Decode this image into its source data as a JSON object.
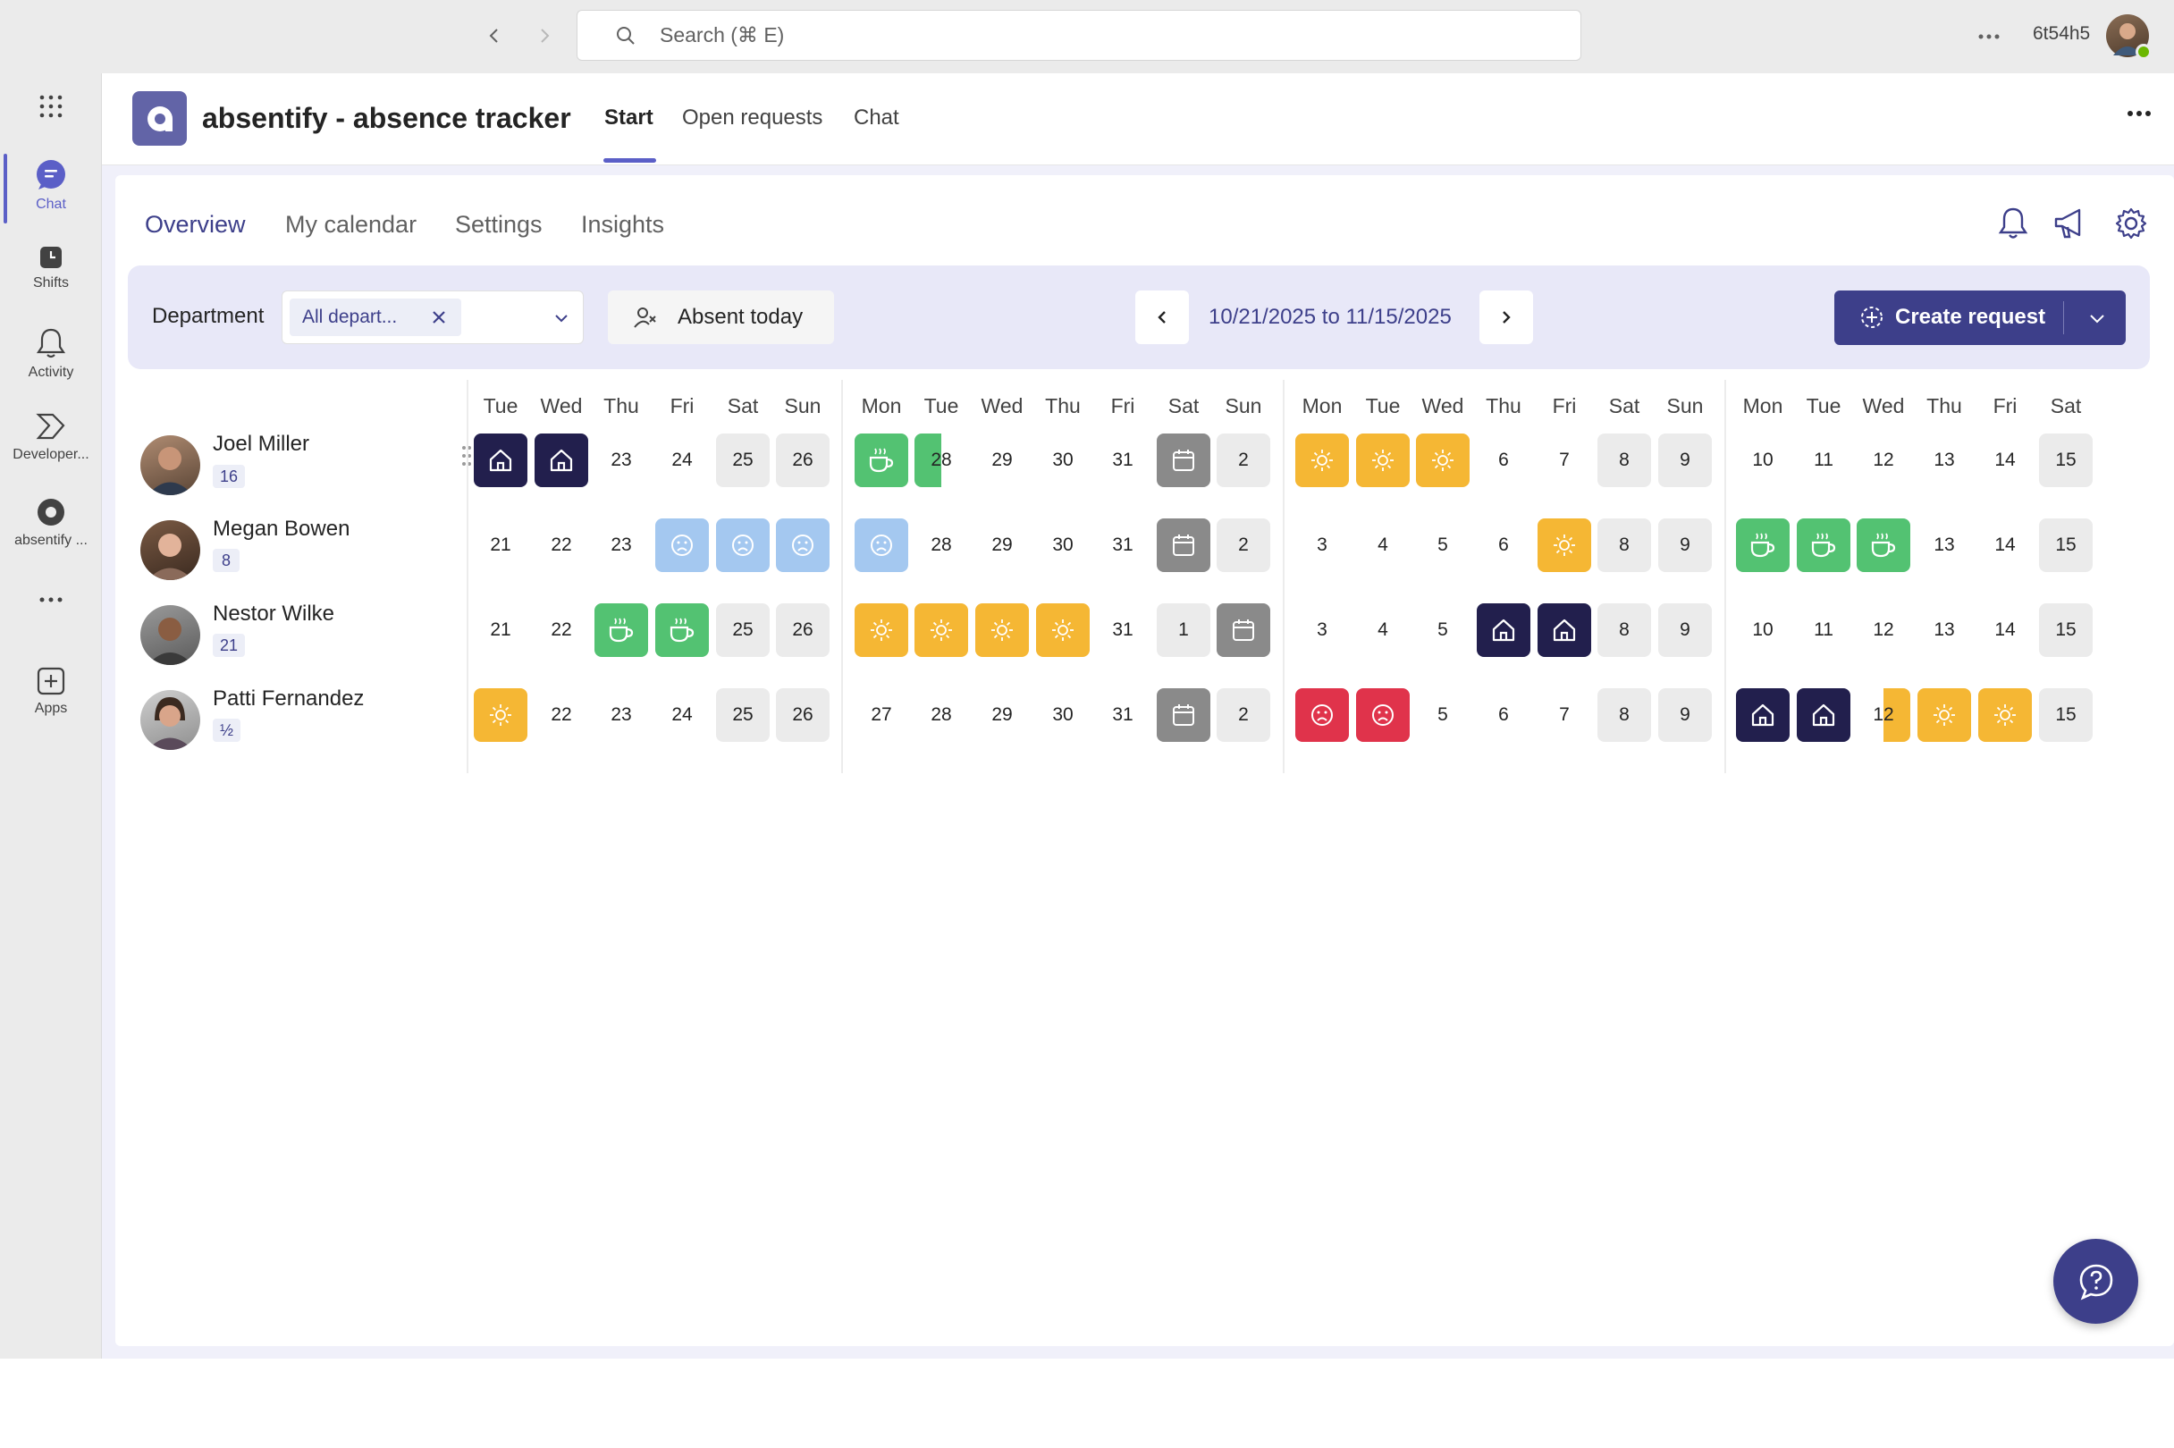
{
  "topbar": {
    "search_placeholder": "Search (⌘ E)",
    "username": "6t54h5"
  },
  "rail": {
    "items": [
      {
        "label": "Chat",
        "icon": "chat-icon",
        "active": true
      },
      {
        "label": "Shifts",
        "icon": "shifts-icon"
      },
      {
        "label": "Activity",
        "icon": "bell-icon"
      },
      {
        "label": "Developer...",
        "icon": "developer-icon"
      },
      {
        "label": "absentify ...",
        "icon": "absentify-icon"
      },
      {
        "label": "Apps",
        "icon": "apps-icon"
      }
    ]
  },
  "app": {
    "title": "absentify - absence tracker",
    "tabs": [
      "Start",
      "Open requests",
      "Chat"
    ],
    "active_tab": "Start"
  },
  "subnav": {
    "tabs": [
      "Overview",
      "My calendar",
      "Settings",
      "Insights"
    ],
    "active": "Overview"
  },
  "filters": {
    "department_label": "Department",
    "department_chip": "All depart...",
    "absent_today_label": "Absent today",
    "date_range": "10/21/2025 to 11/15/2025",
    "create_request_label": "Create request"
  },
  "colors": {
    "accent": "#3d3f8a",
    "home_office": "#221f4d",
    "vacation": "#f5b734",
    "break": "#53c272",
    "sick": "#a4c8f0",
    "sad_red": "#e0334b",
    "holiday_gray": "#8a8a8a",
    "weekend": "#ebebeb"
  },
  "calendar": {
    "day_headers": [
      "Tue",
      "Wed",
      "Thu",
      "Fri",
      "Sat",
      "Sun",
      "Mon",
      "Tue",
      "Wed",
      "Thu",
      "Fri",
      "Sat",
      "Sun",
      "Mon",
      "Tue",
      "Wed",
      "Thu",
      "Fri",
      "Sat",
      "Sun",
      "Mon",
      "Tue",
      "Wed",
      "Thu",
      "Fri",
      "Sat"
    ],
    "people": [
      {
        "name": "Joel Miller",
        "badge": "16",
        "cells": [
          {
            "t": "home"
          },
          {
            "t": "home"
          },
          {
            "d": "23"
          },
          {
            "d": "24"
          },
          {
            "d": "25",
            "t": "wk"
          },
          {
            "d": "26",
            "t": "wk"
          },
          {
            "t": "cof"
          },
          {
            "d": "28",
            "t": "cofhalf"
          },
          {
            "d": "29"
          },
          {
            "d": "30"
          },
          {
            "d": "31"
          },
          {
            "t": "gray"
          },
          {
            "d": "2",
            "t": "wk"
          },
          {
            "t": "sun"
          },
          {
            "t": "sun"
          },
          {
            "t": "sun"
          },
          {
            "d": "6"
          },
          {
            "d": "7"
          },
          {
            "d": "8",
            "t": "wk"
          },
          {
            "d": "9",
            "t": "wk"
          },
          {
            "d": "10"
          },
          {
            "d": "11"
          },
          {
            "d": "12"
          },
          {
            "d": "13"
          },
          {
            "d": "14"
          },
          {
            "d": "15",
            "t": "wk"
          }
        ]
      },
      {
        "name": "Megan Bowen",
        "badge": "8",
        "cells": [
          {
            "d": "21"
          },
          {
            "d": "22"
          },
          {
            "d": "23"
          },
          {
            "t": "sad"
          },
          {
            "t": "sad"
          },
          {
            "t": "sad"
          },
          {
            "t": "sad"
          },
          {
            "d": "28"
          },
          {
            "d": "29"
          },
          {
            "d": "30"
          },
          {
            "d": "31"
          },
          {
            "t": "gray"
          },
          {
            "d": "2",
            "t": "wk"
          },
          {
            "d": "3"
          },
          {
            "d": "4"
          },
          {
            "d": "5"
          },
          {
            "d": "6"
          },
          {
            "t": "sun"
          },
          {
            "d": "8",
            "t": "wk"
          },
          {
            "d": "9",
            "t": "wk"
          },
          {
            "t": "cof"
          },
          {
            "t": "cof"
          },
          {
            "t": "cof"
          },
          {
            "d": "13"
          },
          {
            "d": "14"
          },
          {
            "d": "15",
            "t": "wk"
          }
        ]
      },
      {
        "name": "Nestor Wilke",
        "badge": "21",
        "cells": [
          {
            "d": "21"
          },
          {
            "d": "22"
          },
          {
            "t": "cof"
          },
          {
            "t": "cof"
          },
          {
            "d": "25",
            "t": "wk"
          },
          {
            "d": "26",
            "t": "wk"
          },
          {
            "t": "sun"
          },
          {
            "t": "sun"
          },
          {
            "t": "sun"
          },
          {
            "t": "sun"
          },
          {
            "d": "31"
          },
          {
            "d": "1",
            "t": "wk"
          },
          {
            "t": "gray"
          },
          {
            "d": "3"
          },
          {
            "d": "4"
          },
          {
            "d": "5"
          },
          {
            "t": "home"
          },
          {
            "t": "home"
          },
          {
            "d": "8",
            "t": "wk"
          },
          {
            "d": "9",
            "t": "wk"
          },
          {
            "d": "10"
          },
          {
            "d": "11"
          },
          {
            "d": "12"
          },
          {
            "d": "13"
          },
          {
            "d": "14"
          },
          {
            "d": "15",
            "t": "wk"
          }
        ]
      },
      {
        "name": "Patti Fernandez",
        "badge": "½",
        "cells": [
          {
            "t": "sun"
          },
          {
            "d": "22"
          },
          {
            "d": "23"
          },
          {
            "d": "24"
          },
          {
            "d": "25",
            "t": "wk"
          },
          {
            "d": "26",
            "t": "wk"
          },
          {
            "d": "27"
          },
          {
            "d": "28"
          },
          {
            "d": "29"
          },
          {
            "d": "30"
          },
          {
            "d": "31"
          },
          {
            "t": "gray"
          },
          {
            "d": "2",
            "t": "wk"
          },
          {
            "t": "red"
          },
          {
            "t": "red"
          },
          {
            "d": "5"
          },
          {
            "d": "6"
          },
          {
            "d": "7"
          },
          {
            "d": "8",
            "t": "wk"
          },
          {
            "d": "9",
            "t": "wk"
          },
          {
            "t": "home"
          },
          {
            "t": "home"
          },
          {
            "d": "12",
            "t": "sunhalf"
          },
          {
            "t": "sun"
          },
          {
            "t": "sun"
          },
          {
            "d": "15",
            "t": "wk"
          }
        ]
      }
    ]
  }
}
